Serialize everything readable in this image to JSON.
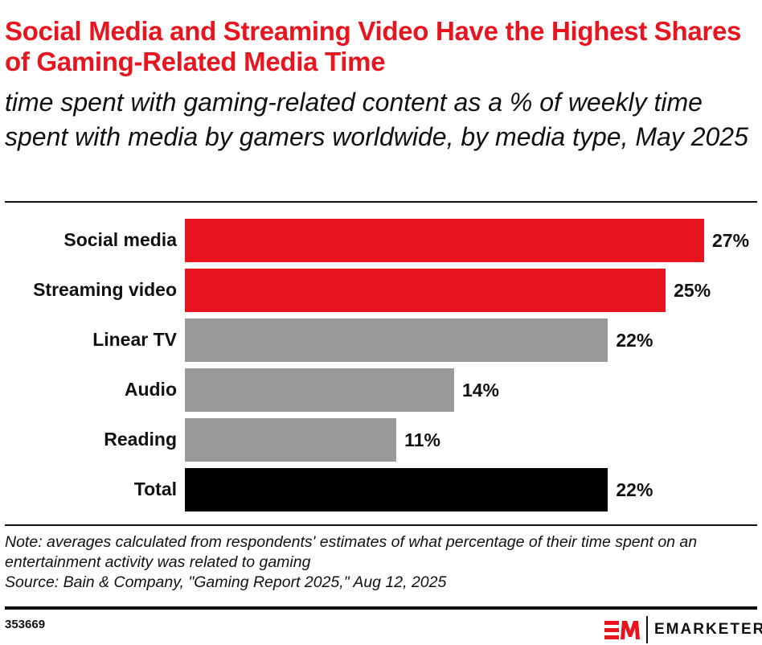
{
  "title": "Social Media and Streaming Video Have the Highest Shares of Gaming-Related Media Time",
  "subtitle": "time spent with gaming-related content as a % of weekly time spent with media by gamers worldwide, by media type, May 2025",
  "chart_data": {
    "type": "bar",
    "orientation": "horizontal",
    "categories": [
      "Social media",
      "Streaming video",
      "Linear TV",
      "Audio",
      "Reading",
      "Total"
    ],
    "values": [
      27,
      25,
      22,
      14,
      11,
      22
    ],
    "labels": [
      "27%",
      "25%",
      "22%",
      "14%",
      "11%",
      "22%"
    ],
    "colors": [
      "#e8141e",
      "#e8141e",
      "#999999",
      "#999999",
      "#999999",
      "#000000"
    ],
    "xlim": [
      0,
      30
    ],
    "grid": false
  },
  "note": "Note: averages calculated from respondents' estimates of what percentage of their time spent on an entertainment activity was related to gaming",
  "source": "Source: Bain & Company, \"Gaming Report 2025,\" Aug 12, 2025",
  "chart_id": "353669",
  "brand": {
    "name": "EMARKETER",
    "mark": "EM",
    "color": "#e8141e"
  }
}
